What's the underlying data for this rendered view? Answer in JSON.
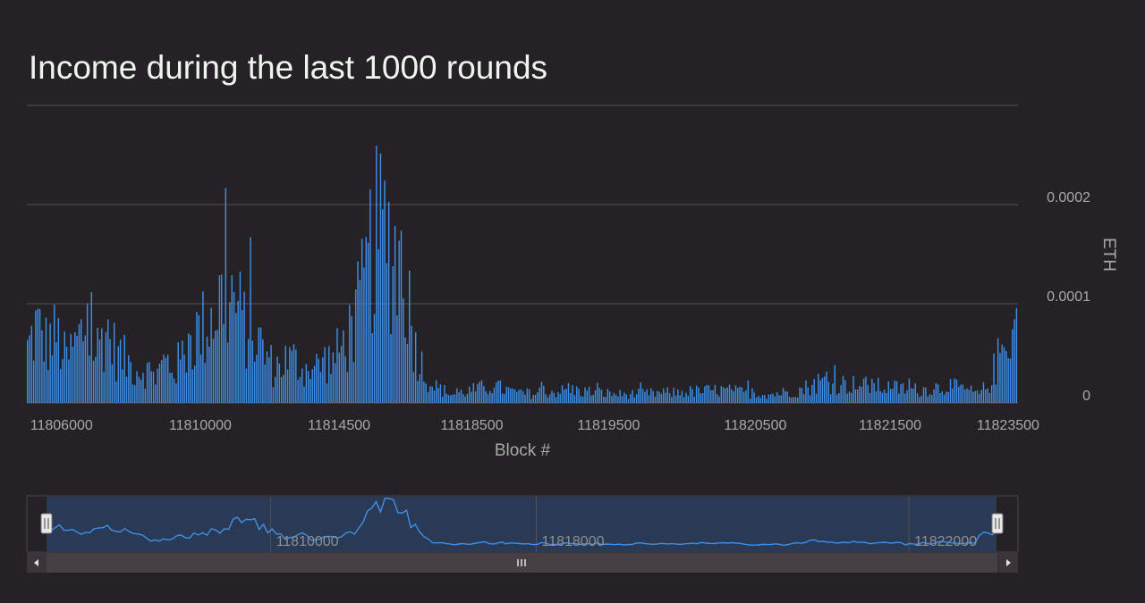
{
  "chart_data": {
    "type": "bar",
    "title": "Income during the last 1000 rounds",
    "xlabel": "Block #",
    "ylabel": "ETH",
    "y_axis_side": "right",
    "ylim": [
      0,
      0.0003
    ],
    "y_ticks": [
      {
        "value": 0,
        "label": "0"
      },
      {
        "value": 0.0001,
        "label": "0.0001"
      },
      {
        "value": 0.0002,
        "label": "0.0002"
      }
    ],
    "x_tick_labels": [
      "11806000",
      "11810000",
      "11814500",
      "11818500",
      "11819500",
      "11820500",
      "11821500",
      "11823500"
    ],
    "x_tick_values": [
      0.035,
      0.175,
      0.315,
      0.449,
      0.587,
      0.735,
      0.871,
      0.99
    ],
    "series": [
      {
        "color": "#3d8fea",
        "samples": [
          {
            "pos": 0.0,
            "value": 6e-05
          },
          {
            "pos": 0.01,
            "value": 9e-05
          },
          {
            "pos": 0.02,
            "value": 7e-05
          },
          {
            "pos": 0.03,
            "value": 8e-05
          },
          {
            "pos": 0.04,
            "value": 5e-05
          },
          {
            "pos": 0.05,
            "value": 7e-05
          },
          {
            "pos": 0.06,
            "value": 9e-05
          },
          {
            "pos": 0.07,
            "value": 6e-05
          },
          {
            "pos": 0.08,
            "value": 9e-05
          },
          {
            "pos": 0.09,
            "value": 6e-05
          },
          {
            "pos": 0.1,
            "value": 5e-05
          },
          {
            "pos": 0.11,
            "value": 4e-05
          },
          {
            "pos": 0.12,
            "value": 4e-05
          },
          {
            "pos": 0.13,
            "value": 3e-05
          },
          {
            "pos": 0.14,
            "value": 5e-05
          },
          {
            "pos": 0.15,
            "value": 4e-05
          },
          {
            "pos": 0.16,
            "value": 6e-05
          },
          {
            "pos": 0.17,
            "value": 8e-05
          },
          {
            "pos": 0.18,
            "value": 9e-05
          },
          {
            "pos": 0.19,
            "value": 0.00011
          },
          {
            "pos": 0.2,
            "value": 0.00013
          },
          {
            "pos": 0.21,
            "value": 0.00012
          },
          {
            "pos": 0.22,
            "value": 9e-05
          },
          {
            "pos": 0.23,
            "value": 8e-05
          },
          {
            "pos": 0.24,
            "value": 6e-05
          },
          {
            "pos": 0.25,
            "value": 4e-05
          },
          {
            "pos": 0.26,
            "value": 5e-05
          },
          {
            "pos": 0.27,
            "value": 5e-05
          },
          {
            "pos": 0.28,
            "value": 4e-05
          },
          {
            "pos": 0.29,
            "value": 4e-05
          },
          {
            "pos": 0.3,
            "value": 5e-05
          },
          {
            "pos": 0.31,
            "value": 5e-05
          },
          {
            "pos": 0.32,
            "value": 7e-05
          },
          {
            "pos": 0.33,
            "value": 9e-05
          },
          {
            "pos": 0.34,
            "value": 0.00013
          },
          {
            "pos": 0.35,
            "value": 0.00019
          },
          {
            "pos": 0.36,
            "value": 0.0002
          },
          {
            "pos": 0.37,
            "value": 0.00018
          },
          {
            "pos": 0.38,
            "value": 0.00017
          },
          {
            "pos": 0.39,
            "value": 8e-05
          },
          {
            "pos": 0.4,
            "value": 4e-05
          },
          {
            "pos": 0.41,
            "value": 2e-05
          },
          {
            "pos": 0.42,
            "value": 1.5e-05
          },
          {
            "pos": 0.43,
            "value": 1e-05
          },
          {
            "pos": 0.45,
            "value": 1.5e-05
          },
          {
            "pos": 0.47,
            "value": 2e-05
          },
          {
            "pos": 0.5,
            "value": 1e-05
          },
          {
            "pos": 0.55,
            "value": 1.5e-05
          },
          {
            "pos": 0.6,
            "value": 1e-05
          },
          {
            "pos": 0.65,
            "value": 1.2e-05
          },
          {
            "pos": 0.7,
            "value": 1.5e-05
          },
          {
            "pos": 0.75,
            "value": 1e-05
          },
          {
            "pos": 0.78,
            "value": 1.5e-05
          },
          {
            "pos": 0.8,
            "value": 2.5e-05
          },
          {
            "pos": 0.85,
            "value": 2e-05
          },
          {
            "pos": 0.9,
            "value": 1.5e-05
          },
          {
            "pos": 0.93,
            "value": 2e-05
          },
          {
            "pos": 0.95,
            "value": 1.5e-05
          },
          {
            "pos": 0.96,
            "value": 1e-05
          },
          {
            "pos": 0.97,
            "value": 2e-05
          },
          {
            "pos": 0.98,
            "value": 5e-05
          },
          {
            "pos": 0.99,
            "value": 8e-05
          },
          {
            "pos": 1.0,
            "value": 9e-05
          }
        ]
      }
    ],
    "grid": true,
    "navigator": {
      "labels": [
        "11810000",
        "11818000",
        "11822000"
      ],
      "label_positions": [
        0.246,
        0.514,
        0.89
      ],
      "range": [
        0.02,
        0.98
      ]
    }
  },
  "colors": {
    "background": "#252225",
    "bar": "#3d8fea",
    "grid": "#5c4f55",
    "navigator_mask": "#2a3a55"
  }
}
